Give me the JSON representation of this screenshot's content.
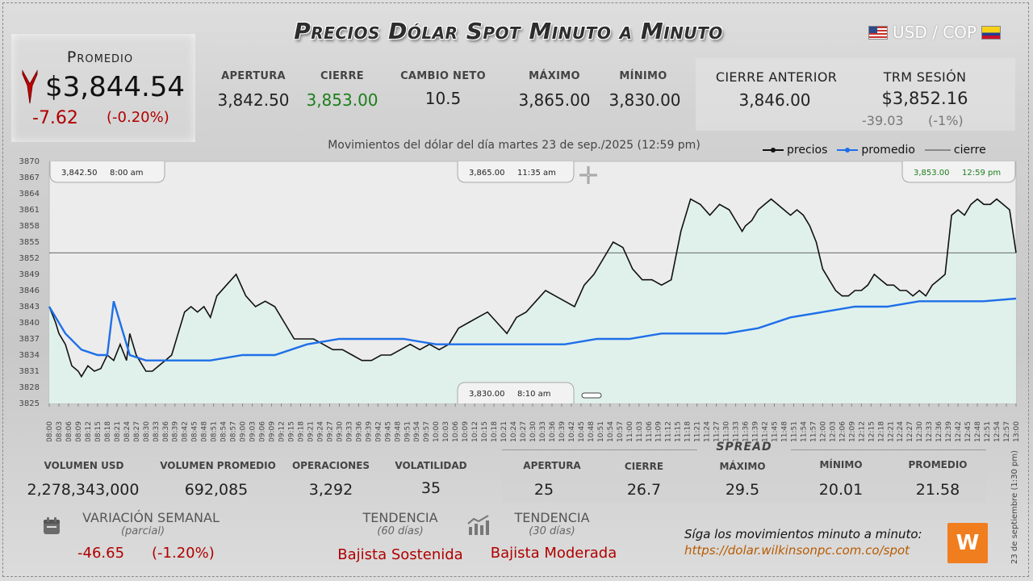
{
  "header": {
    "title": "Precios Dólar Spot Minuto a Minuto",
    "pair": "USD / COP"
  },
  "average": {
    "label": "Promedio",
    "value": "$3,844.54",
    "change": "-7.62",
    "change_pct": "(-0.20%)",
    "direction": "down"
  },
  "stats": [
    {
      "label": "APERTURA",
      "value": "3,842.50"
    },
    {
      "label": "CIERRE",
      "value": "3,853.00"
    },
    {
      "label": "CAMBIO NETO",
      "value": "10.5"
    },
    {
      "label": "MÁXIMO",
      "value": "3,865.00"
    },
    {
      "label": "MÍNIMO",
      "value": "3,830.00"
    }
  ],
  "previous_close": {
    "label": "CIERRE ANTERIOR",
    "value": "3,846.00"
  },
  "trm": {
    "label": "TRM SESIÓN",
    "value": "$3,852.16",
    "change": "-39.03",
    "change_pct": "(-1%)"
  },
  "chart_subtitle": "Movimientos del dólar del día martes 23 de sep./2025 (12:59 pm)",
  "legend": {
    "precios": "precios",
    "promedio": "promedio",
    "cierre": "cierre"
  },
  "colors": {
    "precios": "#111111",
    "promedio": "#1e6fe8",
    "cierre": "#555555",
    "fill": "#dff2ec",
    "up": "#1b7f1b",
    "down": "#b00000"
  },
  "annotations": {
    "open": {
      "value": "3,842.50",
      "time": "8:00 am"
    },
    "high": {
      "value": "3,865.00",
      "time": "11:35 am"
    },
    "low": {
      "value": "3,830.00",
      "time": "8:10 am"
    },
    "close": {
      "value": "3,853.00",
      "time": "12:59 pm"
    }
  },
  "volume": [
    {
      "label": "VOLUMEN USD",
      "value": "2,278,343,000"
    },
    {
      "label": "VOLUMEN PROMEDIO",
      "value": "692,085"
    },
    {
      "label": "OPERACIONES",
      "value": "3,292"
    },
    {
      "label": "VOLATILIDAD",
      "value": "35"
    }
  ],
  "spread": {
    "title": "SPREAD",
    "items": [
      {
        "label": "APERTURA",
        "value": "25"
      },
      {
        "label": "CIERRE",
        "value": "26.7"
      },
      {
        "label": "MÁXIMO",
        "value": "29.5"
      },
      {
        "label": "MÍNIMO",
        "value": "20.01"
      },
      {
        "label": "PROMEDIO",
        "value": "21.58"
      }
    ]
  },
  "weekly": {
    "label": "VARIACIÓN SEMANAL",
    "sub": "(parcial)",
    "change": "-46.65",
    "change_pct": "(-1.20%)"
  },
  "trend60": {
    "label": "TENDENCIA",
    "sub": "(60 días)",
    "value": "Bajista Sostenida"
  },
  "trend30": {
    "label": "TENDENCIA",
    "sub": "(30 días)",
    "value": "Bajista Moderada"
  },
  "follow": {
    "text": "Síga los movimientos minuto a minuto:",
    "url": "https://dolar.wilkinsonpc.com.co/spot"
  },
  "logo_text": "W",
  "side_note": "23 de septiembre (1:30 pm)",
  "chart_data": {
    "type": "line",
    "ylim": [
      3825,
      3870
    ],
    "yticks": [
      3870,
      3867,
      3864,
      3861,
      3858,
      3855,
      3852,
      3849,
      3846,
      3843,
      3840,
      3837,
      3834,
      3831,
      3828,
      3825
    ],
    "xticks": [
      "08:00",
      "08:03",
      "08:06",
      "08:09",
      "08:12",
      "08:15",
      "08:18",
      "08:21",
      "08:24",
      "08:27",
      "08:30",
      "08:33",
      "08:36",
      "08:39",
      "08:42",
      "08:45",
      "08:48",
      "08:51",
      "08:54",
      "08:57",
      "09:00",
      "09:03",
      "09:06",
      "09:09",
      "09:12",
      "09:15",
      "09:18",
      "09:21",
      "09:24",
      "09:27",
      "09:30",
      "09:33",
      "09:36",
      "09:39",
      "09:42",
      "09:45",
      "09:48",
      "09:51",
      "09:54",
      "09:57",
      "10:00",
      "10:03",
      "10:06",
      "10:09",
      "10:12",
      "10:15",
      "10:18",
      "10:21",
      "10:24",
      "10:27",
      "10:30",
      "10:33",
      "10:36",
      "10:39",
      "10:42",
      "10:45",
      "10:48",
      "10:51",
      "10:54",
      "10:57",
      "11:00",
      "11:03",
      "11:06",
      "11:09",
      "11:12",
      "11:15",
      "11:18",
      "11:21",
      "11:24",
      "11:27",
      "11:30",
      "11:33",
      "11:36",
      "11:39",
      "11:42",
      "11:45",
      "11:48",
      "11:51",
      "11:54",
      "11:57",
      "12:00",
      "12:03",
      "12:06",
      "12:09",
      "12:12",
      "12:15",
      "12:18",
      "12:21",
      "12:24",
      "12:27",
      "12:30",
      "12:33",
      "12:36",
      "12:39",
      "12:42",
      "12:45",
      "12:48",
      "12:51",
      "12:54",
      "12:57",
      "13:00"
    ],
    "close_line": 3853,
    "series": [
      {
        "name": "precios",
        "x": [
          0,
          2,
          3,
          5,
          7,
          9,
          10,
          12,
          14,
          16,
          18,
          20,
          22,
          24,
          25,
          27,
          28,
          30,
          32,
          34,
          36,
          38,
          40,
          42,
          44,
          46,
          48,
          50,
          52,
          55,
          58,
          61,
          64,
          67,
          70,
          73,
          76,
          79,
          82,
          85,
          88,
          91,
          94,
          97,
          100,
          103,
          106,
          109,
          112,
          115,
          118,
          121,
          124,
          127,
          130,
          133,
          136,
          139,
          142,
          145,
          148,
          151,
          154,
          157,
          160,
          163,
          166,
          169,
          172,
          175,
          178,
          181,
          184,
          187,
          190,
          193,
          196,
          199,
          202,
          205,
          208,
          211,
          214,
          215,
          216,
          218,
          220,
          222,
          224,
          226,
          228,
          230,
          232,
          234,
          236,
          238,
          240,
          242,
          244,
          246,
          248,
          250,
          252,
          254,
          256,
          258,
          260,
          262,
          264,
          266,
          268,
          270,
          272,
          274,
          276,
          278,
          280,
          282,
          284,
          286,
          288,
          290,
          292,
          294,
          296,
          298,
          300
        ],
        "values": [
          3843,
          3840,
          3838,
          3836,
          3832,
          3831,
          3830,
          3832,
          3831,
          3831.5,
          3834,
          3833,
          3836,
          3833,
          3838,
          3834,
          3833,
          3831,
          3831,
          3832,
          3833,
          3834,
          3838,
          3842,
          3843,
          3842,
          3843,
          3841,
          3845,
          3847,
          3849,
          3845,
          3843,
          3844,
          3843,
          3840,
          3837,
          3837,
          3837,
          3836,
          3835,
          3835,
          3834,
          3833,
          3833,
          3834,
          3834,
          3835,
          3836,
          3835,
          3836,
          3835,
          3836,
          3839,
          3840,
          3841,
          3842,
          3840,
          3838,
          3841,
          3842,
          3844,
          3846,
          3845,
          3844,
          3843,
          3847,
          3849,
          3852,
          3855,
          3854,
          3850,
          3848,
          3848,
          3847,
          3848,
          3857,
          3863,
          3862,
          3860,
          3862,
          3861,
          3858,
          3857,
          3858,
          3859,
          3861,
          3862,
          3863,
          3862,
          3861,
          3860,
          3861,
          3860,
          3858,
          3855,
          3850,
          3848,
          3846,
          3845,
          3845,
          3846,
          3846,
          3847,
          3849,
          3848,
          3847,
          3847,
          3846,
          3846,
          3845,
          3846,
          3845,
          3847,
          3848,
          3849,
          3860,
          3861,
          3860,
          3862,
          3863,
          3862,
          3862,
          3863,
          3862,
          3861,
          3853
        ],
        "color": "#111111"
      },
      {
        "name": "promedio",
        "x": [
          0,
          5,
          10,
          15,
          18,
          20,
          25,
          30,
          35,
          40,
          50,
          60,
          70,
          80,
          90,
          100,
          110,
          120,
          130,
          140,
          150,
          160,
          170,
          180,
          190,
          200,
          210,
          220,
          230,
          240,
          250,
          260,
          270,
          280,
          290,
          300
        ],
        "values": [
          3843,
          3838,
          3835,
          3834,
          3834,
          3844,
          3834,
          3833,
          3833,
          3833,
          3833,
          3834,
          3834,
          3836,
          3837,
          3837,
          3837,
          3836,
          3836,
          3836,
          3836,
          3836,
          3837,
          3837,
          3838,
          3838,
          3838,
          3839,
          3841,
          3842,
          3843,
          3843,
          3844,
          3844,
          3844,
          3844.5
        ],
        "color": "#1e6fe8"
      }
    ]
  }
}
